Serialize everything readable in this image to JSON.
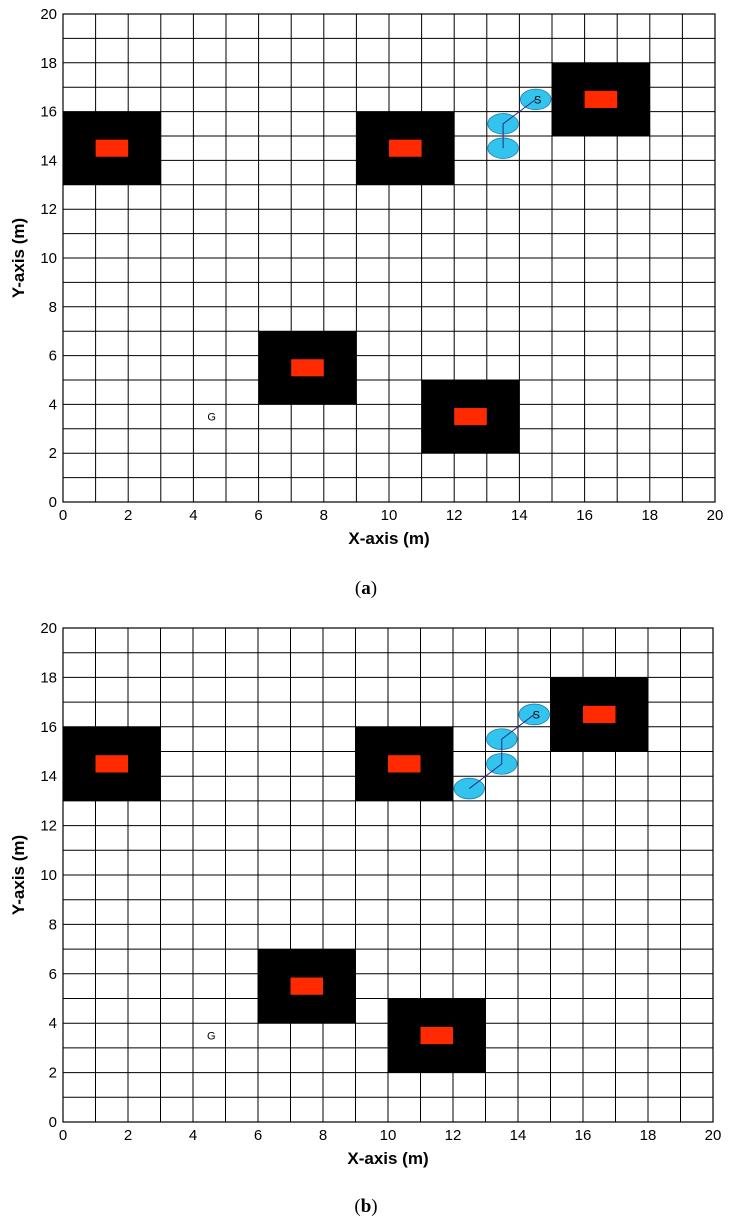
{
  "chart_data": [
    {
      "type": "scatter",
      "panel_label": "a",
      "xlabel": "X-axis (m)",
      "ylabel": "Y-axis  (m)",
      "xlim": [
        0,
        20
      ],
      "ylim": [
        0,
        20
      ],
      "xticks": [
        0,
        2,
        4,
        6,
        8,
        10,
        12,
        14,
        16,
        18,
        20
      ],
      "yticks": [
        0,
        2,
        4,
        6,
        8,
        10,
        12,
        14,
        16,
        18,
        20
      ],
      "grid": true,
      "obstacles": [
        {
          "x": [
            0,
            3
          ],
          "y": [
            13,
            16
          ]
        },
        {
          "x": [
            9,
            12
          ],
          "y": [
            13,
            16
          ]
        },
        {
          "x": [
            15,
            18
          ],
          "y": [
            15,
            18
          ]
        },
        {
          "x": [
            6,
            9
          ],
          "y": [
            4,
            7
          ]
        },
        {
          "x": [
            11,
            14
          ],
          "y": [
            2,
            5
          ]
        }
      ],
      "start": {
        "label": "S",
        "x": 14.5,
        "y": 16.5
      },
      "goal": {
        "label": "G",
        "x": 4.5,
        "y": 3.5
      },
      "path": {
        "x": [
          14.5,
          13.5,
          13.5
        ],
        "y": [
          16.5,
          15.5,
          14.5
        ]
      },
      "colors": {
        "obstacle": "#000000",
        "obstacle_core": "#ff2a00",
        "path_node": "#33c4ee",
        "path_line": "#1f2d8a"
      }
    },
    {
      "type": "scatter",
      "panel_label": "b",
      "xlabel": "X-axis (m)",
      "ylabel": "Y-axis  (m)",
      "xlim": [
        0,
        20
      ],
      "ylim": [
        0,
        20
      ],
      "xticks": [
        0,
        2,
        4,
        6,
        8,
        10,
        12,
        14,
        16,
        18,
        20
      ],
      "yticks": [
        0,
        2,
        4,
        6,
        8,
        10,
        12,
        14,
        16,
        18,
        20
      ],
      "grid": true,
      "obstacles": [
        {
          "x": [
            0,
            3
          ],
          "y": [
            13,
            16
          ]
        },
        {
          "x": [
            9,
            12
          ],
          "y": [
            13,
            16
          ]
        },
        {
          "x": [
            15,
            18
          ],
          "y": [
            15,
            18
          ]
        },
        {
          "x": [
            6,
            9
          ],
          "y": [
            4,
            7
          ]
        },
        {
          "x": [
            10,
            13
          ],
          "y": [
            2,
            5
          ]
        }
      ],
      "start": {
        "label": "S",
        "x": 14.5,
        "y": 16.5
      },
      "goal": {
        "label": "G",
        "x": 4.5,
        "y": 3.5
      },
      "path": {
        "x": [
          14.5,
          13.5,
          13.5,
          12.5
        ],
        "y": [
          16.5,
          15.5,
          14.5,
          13.5
        ]
      },
      "colors": {
        "obstacle": "#000000",
        "obstacle_core": "#ff2a00",
        "path_node": "#33c4ee",
        "path_line": "#1f2d8a"
      }
    }
  ]
}
